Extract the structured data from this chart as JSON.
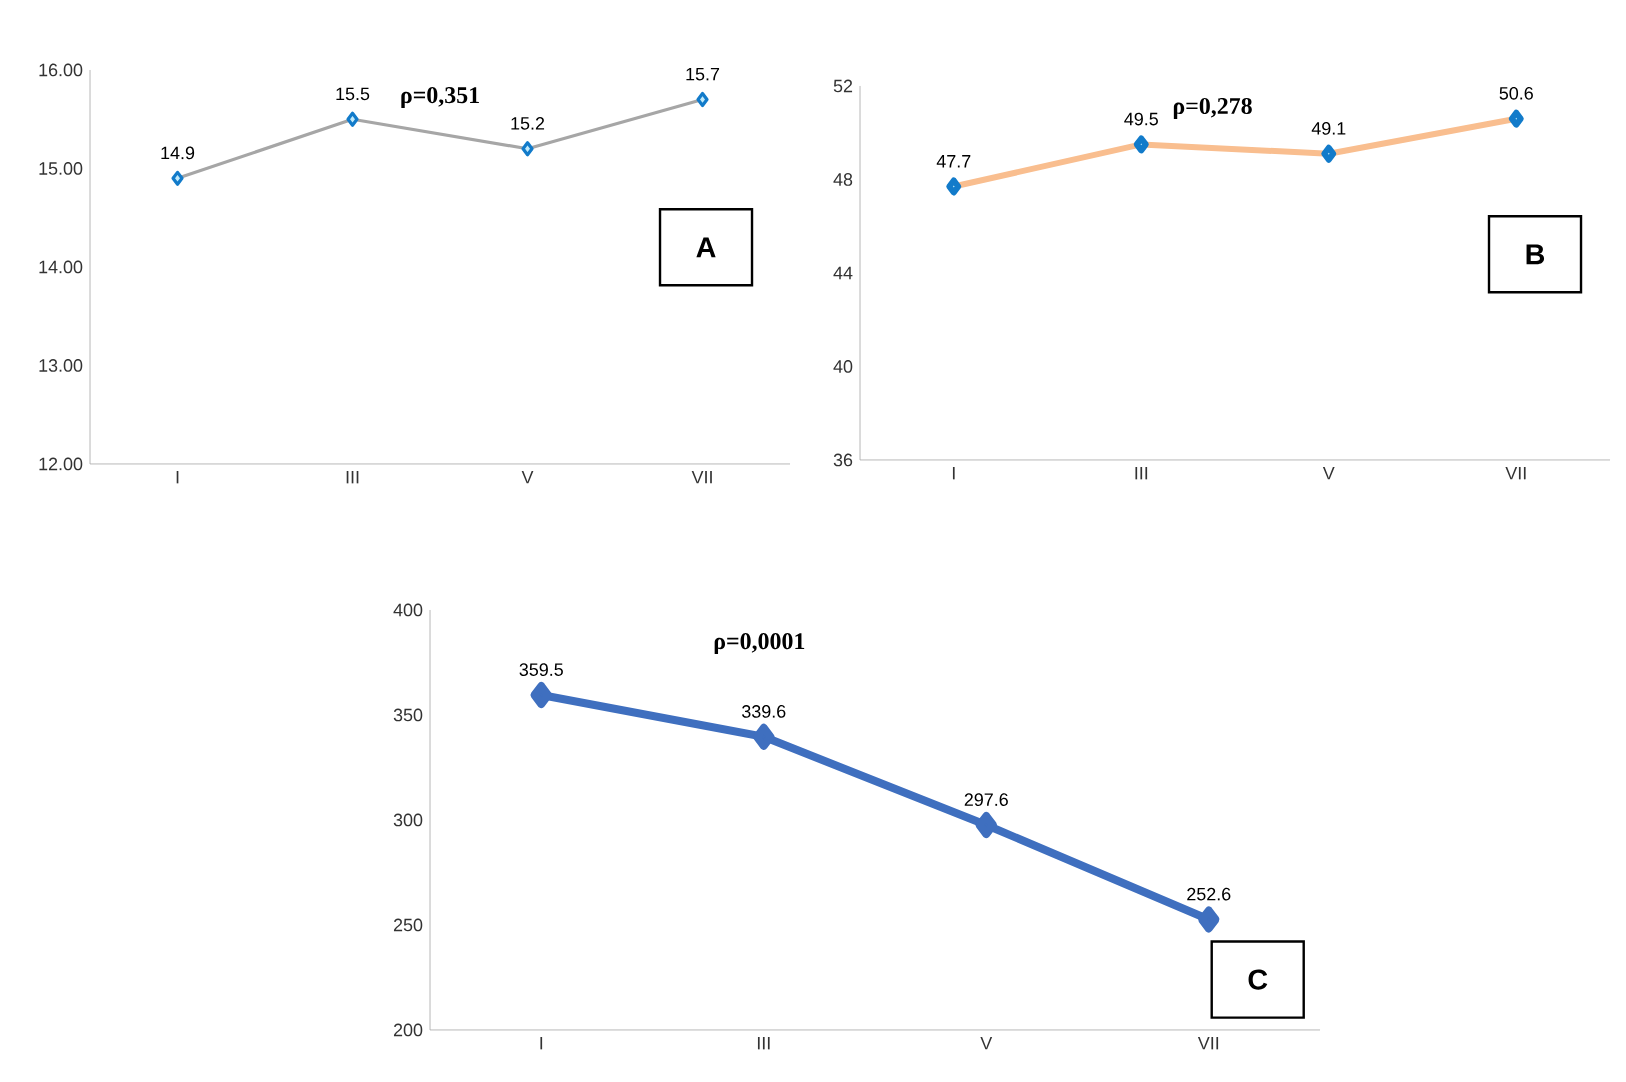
{
  "chart_data": [
    {
      "type": "line",
      "categories": [
        "I",
        "III",
        "V",
        "VII"
      ],
      "series": [
        {
          "color": "#a6a6a6",
          "values": [
            14.9,
            15.5,
            15.2,
            15.7
          ]
        }
      ],
      "ylim": [
        12,
        16
      ],
      "yticks": [
        {
          "value": 12,
          "label": "12.00"
        },
        {
          "value": 13,
          "label": "13.00"
        },
        {
          "value": 14,
          "label": "14.00"
        },
        {
          "value": 15,
          "label": "15.00"
        },
        {
          "value": 16,
          "label": "16.00"
        }
      ],
      "data_labels": true,
      "marker": "diamond",
      "annotations": [
        "ρ=0,351",
        "A"
      ]
    },
    {
      "type": "line",
      "categories": [
        "I",
        "III",
        "V",
        "VII"
      ],
      "series": [
        {
          "color": "#f9be8f",
          "values": [
            47.7,
            49.5,
            49.1,
            50.6
          ]
        }
      ],
      "ylim": [
        36,
        52
      ],
      "yticks": [
        36,
        40,
        44,
        48,
        52
      ],
      "data_labels": true,
      "marker": "diamond",
      "annotations": [
        "ρ=0,278",
        "B"
      ]
    },
    {
      "type": "line",
      "categories": [
        "I",
        "III",
        "V",
        "VII"
      ],
      "series": [
        {
          "color": "#3f6fbf",
          "values": [
            359.5,
            339.6,
            297.6,
            252.6
          ]
        }
      ],
      "ylim": [
        200,
        400
      ],
      "yticks": [
        200,
        250,
        300,
        350,
        400
      ],
      "data_labels": true,
      "marker": "diamond",
      "annotations": [
        "ρ=0,0001",
        "C"
      ]
    }
  ]
}
